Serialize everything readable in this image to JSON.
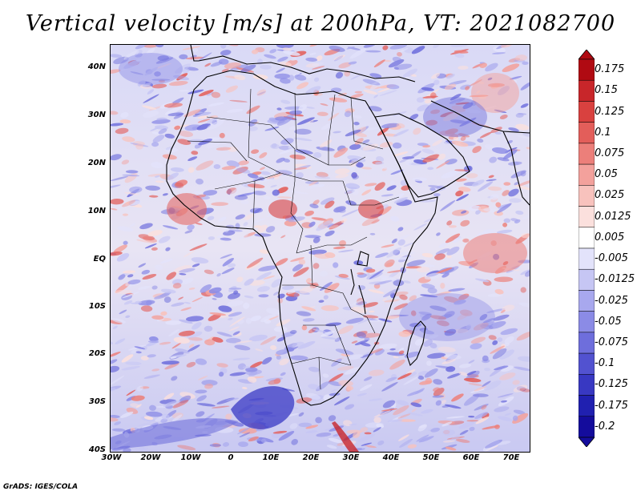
{
  "title": "Vertical velocity [m/s] at 200hPa, VT: 2021082700",
  "credit": "GrADS: IGES/COLA",
  "map": {
    "type": "heatmap",
    "region": "Africa",
    "lon_range": [
      -30,
      75
    ],
    "lat_range": [
      -40,
      45
    ],
    "lat_ticks": [
      "40N",
      "30N",
      "20N",
      "10N",
      "EQ",
      "10S",
      "20S",
      "30S",
      "40S"
    ],
    "lon_ticks": [
      "30W",
      "20W",
      "10W",
      "0",
      "10E",
      "20E",
      "30E",
      "40E",
      "50E",
      "60E",
      "70E"
    ]
  },
  "colorbar": {
    "labels": [
      "0.175",
      "0.15",
      "0.125",
      "0.1",
      "0.075",
      "0.05",
      "0.025",
      "0.0125",
      "0.005",
      "-0.005",
      "-0.0125",
      "-0.025",
      "-0.05",
      "-0.075",
      "-0.1",
      "-0.125",
      "-0.175",
      "-0.2"
    ],
    "colors": [
      "#b00a12",
      "#c8262a",
      "#d9413f",
      "#e35e5a",
      "#ec7f7a",
      "#f3a19c",
      "#f8c2bd",
      "#fbe0dd",
      "#ffffff",
      "#e3e3fb",
      "#c6c6f4",
      "#a8a8ee",
      "#8b8be6",
      "#6e6edc",
      "#5252d0",
      "#3838c2",
      "#2020b0",
      "#140c9c"
    ]
  }
}
